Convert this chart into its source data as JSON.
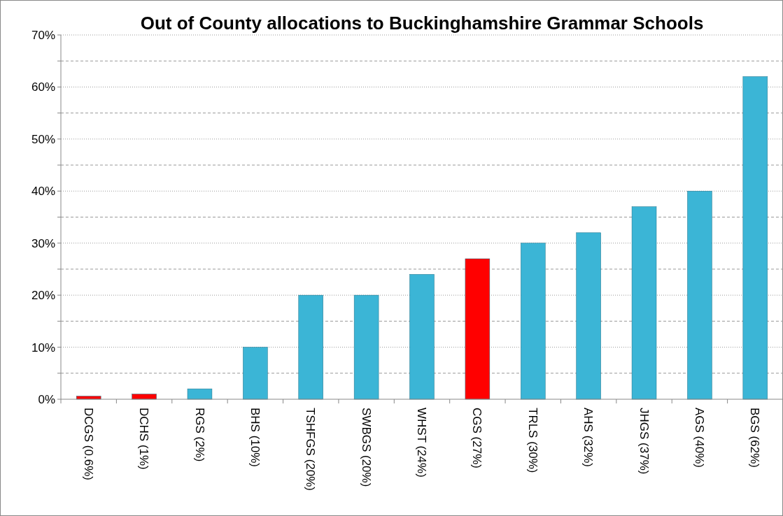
{
  "chart_data": {
    "type": "bar",
    "title": "Out of County allocations to Buckinghamshire Grammar Schools",
    "categories": [
      "DCGS (0.6%)",
      "DCHS (1%)",
      "RGS (2%)",
      "BHS (10%)",
      "TSHFGS (20%)",
      "SWBGS (20%)",
      "WHST (24%)",
      "CGS (27%)",
      "TRLS (30%)",
      "AHS (32%)",
      "JHGS (37%)",
      "AGS (40%)",
      "BGS (62%)"
    ],
    "values": [
      0.6,
      1,
      2,
      10,
      20,
      20,
      24,
      27,
      30,
      32,
      37,
      40,
      62
    ],
    "colors": [
      "#ff0000",
      "#ff0000",
      "#3bb5d6",
      "#3bb5d6",
      "#3bb5d6",
      "#3bb5d6",
      "#3bb5d6",
      "#ff0000",
      "#3bb5d6",
      "#3bb5d6",
      "#3bb5d6",
      "#3bb5d6",
      "#3bb5d6"
    ],
    "ylim": [
      0,
      70
    ],
    "yticks": [
      {
        "value": 0,
        "label": "0%"
      },
      {
        "value": 5,
        "label": null
      },
      {
        "value": 10,
        "label": "10%"
      },
      {
        "value": 15,
        "label": null
      },
      {
        "value": 20,
        "label": "20%"
      },
      {
        "value": 25,
        "label": null
      },
      {
        "value": 30,
        "label": "30%"
      },
      {
        "value": 35,
        "label": null
      },
      {
        "value": 40,
        "label": "40%"
      },
      {
        "value": 45,
        "label": null
      },
      {
        "value": 50,
        "label": "50%"
      },
      {
        "value": 55,
        "label": null
      },
      {
        "value": 60,
        "label": "60%"
      },
      {
        "value": 65,
        "label": null
      },
      {
        "value": 70,
        "label": "70%"
      }
    ],
    "grid": "y"
  }
}
